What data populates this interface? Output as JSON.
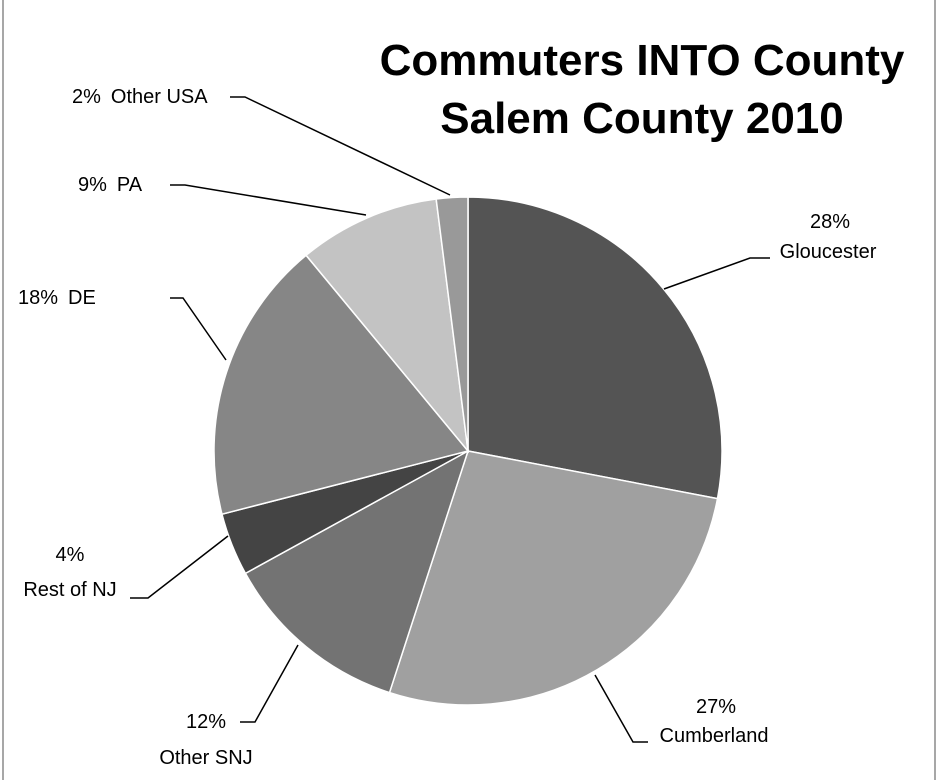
{
  "chart_data": {
    "type": "pie",
    "title_lines": [
      "Commuters INTO County",
      "Salem County 2010"
    ],
    "slices": [
      {
        "name": "Gloucester",
        "value": 28,
        "pct_label": "28%",
        "color": "#545454"
      },
      {
        "name": "Cumberland",
        "value": 27,
        "pct_label": "27%",
        "color": "#a0a0a0"
      },
      {
        "name": "Other SNJ",
        "value": 12,
        "pct_label": "12%",
        "color": "#737373"
      },
      {
        "name": "Rest of NJ",
        "value": 4,
        "pct_label": "4%",
        "color": "#444444"
      },
      {
        "name": "DE",
        "value": 18,
        "pct_label": "18%",
        "color": "#868686"
      },
      {
        "name": "PA",
        "value": 9,
        "pct_label": "9%",
        "color": "#c3c3c3"
      },
      {
        "name": "Other USA",
        "value": 2,
        "pct_label": "2%",
        "color": "#999999"
      }
    ],
    "legend": "none"
  }
}
